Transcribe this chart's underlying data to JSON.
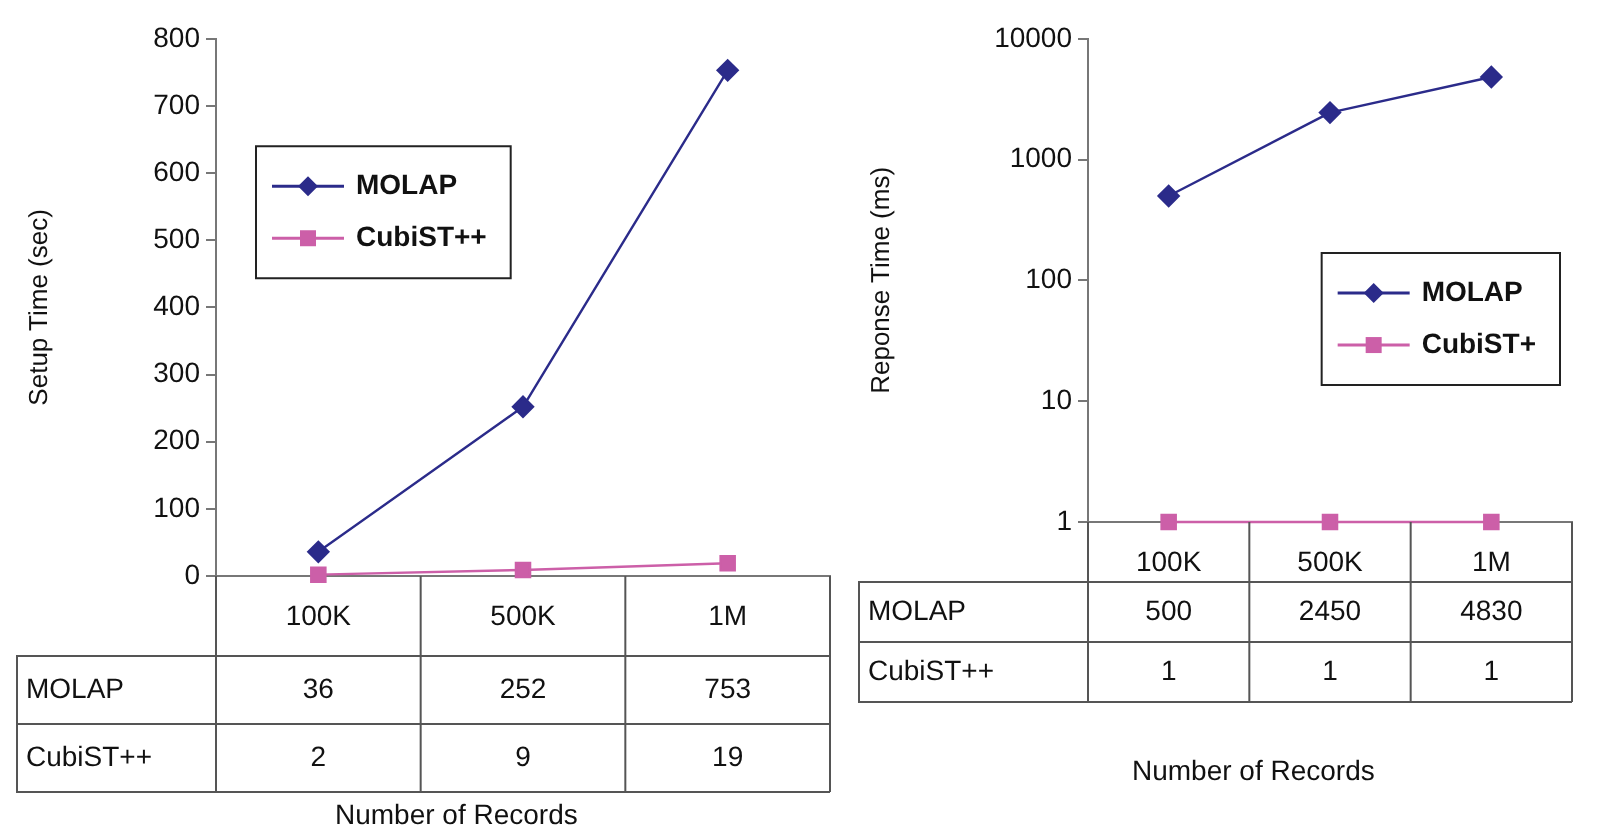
{
  "chart_data": [
    {
      "type": "line",
      "xlabel": "Number of Records",
      "ylabel": "Setup Time (sec)",
      "categories": [
        "100K",
        "500K",
        "1M"
      ],
      "series": [
        {
          "name": "MOLAP",
          "color": "#2b2b8a",
          "values": [
            36,
            252,
            753
          ],
          "marker": "diamond"
        },
        {
          "name": "CubiST++",
          "color": "#cc5fa8",
          "values": [
            2,
            9,
            19
          ],
          "marker": "square"
        }
      ],
      "ylim": [
        0,
        800
      ],
      "yticks": [
        0,
        100,
        200,
        300,
        400,
        500,
        600,
        700,
        800
      ],
      "data_labels": true,
      "legend": "top left",
      "grid": false
    },
    {
      "type": "line",
      "xlabel": "Number of Records",
      "ylabel": "Reponse Time (ms)",
      "categories": [
        "100K",
        "500K",
        "1M"
      ],
      "series": [
        {
          "name": "MOLAP",
          "color": "#2b2b8a",
          "values": [
            500,
            2450,
            4830
          ],
          "marker": "diamond"
        },
        {
          "name": "CubiST+",
          "color": "#cc5fa8",
          "values": [
            1,
            1,
            1
          ],
          "marker": "square"
        }
      ],
      "log": true,
      "ylim": [
        1,
        10000
      ],
      "yticks": [
        1,
        10,
        100,
        1000,
        10000
      ],
      "data_labels": true,
      "legend": "right",
      "grid": false,
      "annotations": [
        "MOLAP",
        "CubiST++"
      ]
    }
  ]
}
